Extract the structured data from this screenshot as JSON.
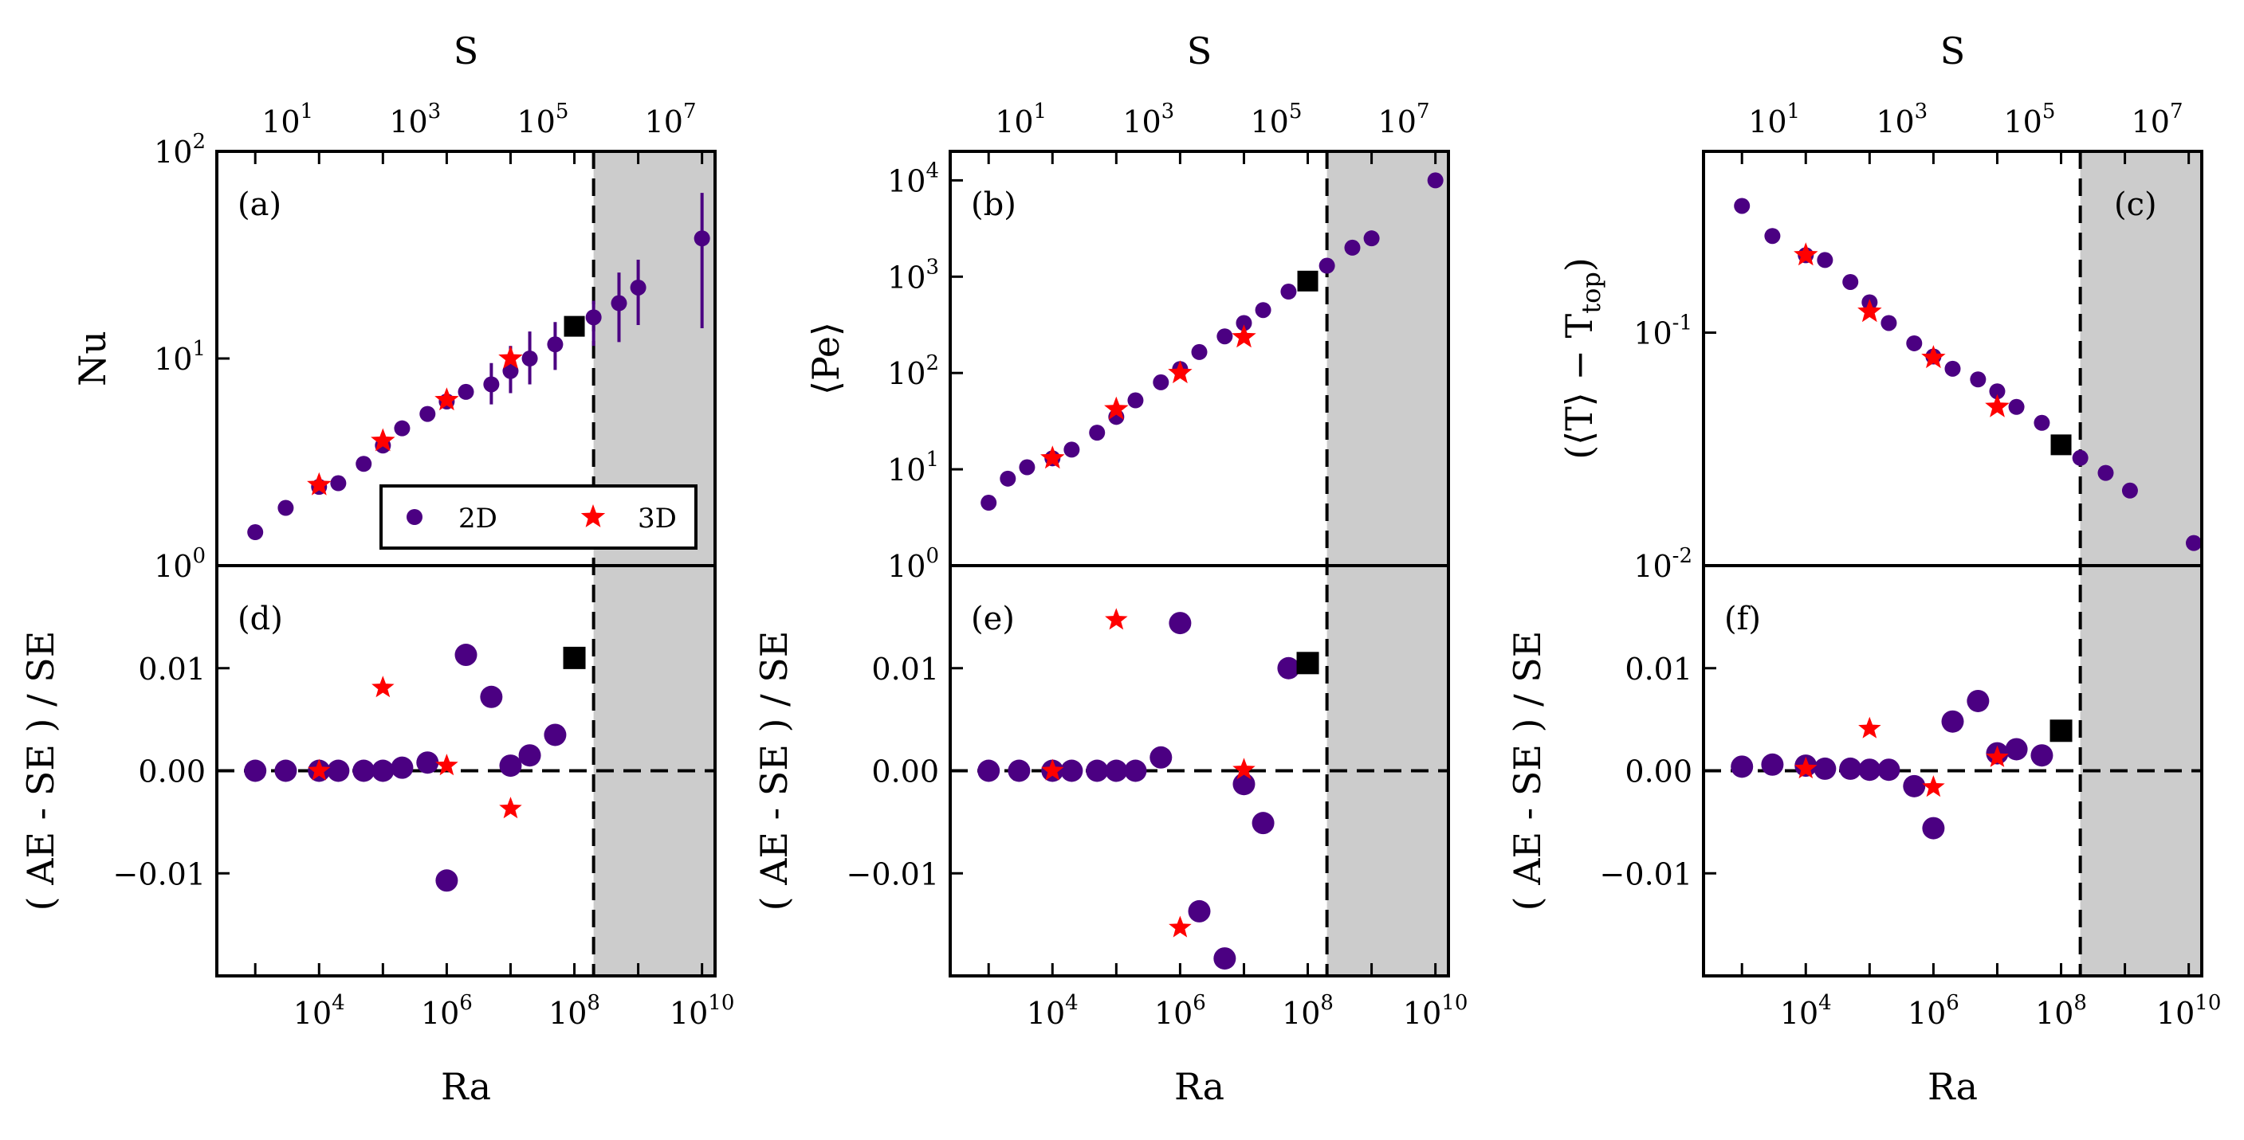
{
  "chart_data": {
    "type": "scatter",
    "colors": {
      "series_2d": "#4b0082",
      "series_3d": "#ff0000",
      "highlight": "#000000",
      "shade": "#cccccc"
    },
    "legend": {
      "entries": [
        "2D",
        "3D"
      ],
      "placement": "lower-right of panel (a)"
    },
    "x_axis": {
      "label": "Ra",
      "scale": "log",
      "range": [
        250.0,
        16000000000.0
      ],
      "ticks": [
        {
          "base": "10",
          "exp": "4"
        },
        {
          "base": "10",
          "exp": "6"
        },
        {
          "base": "10",
          "exp": "8"
        },
        {
          "base": "10",
          "exp": "10"
        }
      ]
    },
    "top_axis": {
      "label": "S",
      "ticks": [
        {
          "base": "10",
          "exp": "1"
        },
        {
          "base": "10",
          "exp": "3"
        },
        {
          "base": "10",
          "exp": "5"
        },
        {
          "base": "10",
          "exp": "7"
        }
      ]
    },
    "threshold_ra": 200000000.0,
    "bottom_ylabel": "( AE - SE ) / SE",
    "bottom_yticks": [
      "0.01",
      "0.00",
      "−0.01"
    ],
    "panels": [
      {
        "id": "a",
        "label": "(a)",
        "ylabel": "Nu",
        "ylim": [
          1,
          100
        ],
        "yticks": [
          {
            "base": "10",
            "exp": "0"
          },
          {
            "base": "10",
            "exp": "1"
          },
          {
            "base": "10",
            "exp": "2"
          }
        ],
        "series_2d": [
          {
            "x": 1000.0,
            "y": 1.45
          },
          {
            "x": 3000.0,
            "y": 1.9
          },
          {
            "x": 10000.0,
            "y": 2.4
          },
          {
            "x": 20000.0,
            "y": 2.5
          },
          {
            "x": 50000.0,
            "y": 3.1
          },
          {
            "x": 100000.0,
            "y": 3.8
          },
          {
            "x": 200000.0,
            "y": 4.6
          },
          {
            "x": 500000.0,
            "y": 5.4
          },
          {
            "x": 1000000.0,
            "y": 6.2
          },
          {
            "x": 2000000.0,
            "y": 6.9
          },
          {
            "x": 5000000.0,
            "y": 7.5,
            "err": [
              6.0,
              9.5
            ]
          },
          {
            "x": 10000000.0,
            "y": 8.7,
            "err": [
              6.8,
              11.5
            ]
          },
          {
            "x": 20000000.0,
            "y": 10.0,
            "err": [
              7.5,
              13.5
            ]
          },
          {
            "x": 50000000.0,
            "y": 11.7,
            "err": [
              8.8,
              15.0
            ]
          },
          {
            "x": 200000000.0,
            "y": 15.8,
            "err": [
              11.5,
              19.0
            ]
          },
          {
            "x": 500000000.0,
            "y": 18.5,
            "err": [
              12.0,
              26.0
            ]
          },
          {
            "x": 1000000000.0,
            "y": 22.0,
            "err": [
              14.5,
              30.0
            ]
          },
          {
            "x": 10000000000.0,
            "y": 38.0,
            "err": [
              14.0,
              63.0
            ]
          }
        ],
        "series_3d": [
          {
            "x": 10000.0,
            "y": 2.45
          },
          {
            "x": 100000.0,
            "y": 4.0
          },
          {
            "x": 1000000.0,
            "y": 6.3
          },
          {
            "x": 10000000.0,
            "y": 10.0
          }
        ],
        "highlight": {
          "x": 100000000.0,
          "y": 14.3
        },
        "diff_2d": [
          {
            "x": 1000.0,
            "y": 0.0
          },
          {
            "x": 3000.0,
            "y": 0.0
          },
          {
            "x": 10000.0,
            "y": 0.0
          },
          {
            "x": 20000.0,
            "y": 0.0
          },
          {
            "x": 50000.0,
            "y": 0.0
          },
          {
            "x": 100000.0,
            "y": 0.0
          },
          {
            "x": 200000.0,
            "y": 0.0003
          },
          {
            "x": 500000.0,
            "y": 0.0008
          },
          {
            "x": 1000000.0,
            "y": -0.0107
          },
          {
            "x": 2000000.0,
            "y": 0.0113
          },
          {
            "x": 5000000.0,
            "y": 0.0072
          },
          {
            "x": 10000000.0,
            "y": 0.0005
          },
          {
            "x": 20000000.0,
            "y": 0.0015
          },
          {
            "x": 50000000.0,
            "y": 0.0035
          }
        ],
        "diff_3d": [
          {
            "x": 10000.0,
            "y": 0.0
          },
          {
            "x": 100000.0,
            "y": 0.0081
          },
          {
            "x": 1000000.0,
            "y": 0.0005
          },
          {
            "x": 10000000.0,
            "y": -0.0037
          }
        ],
        "diff_highlight": {
          "x": 100000000.0,
          "y": 0.011
        }
      },
      {
        "id": "b",
        "label": "(b)",
        "ylabel": "⟨Pe⟩",
        "ylim": [
          1,
          20000
        ],
        "yticks": [
          {
            "base": "10",
            "exp": "0"
          },
          {
            "base": "10",
            "exp": "1"
          },
          {
            "base": "10",
            "exp": "2"
          },
          {
            "base": "10",
            "exp": "3"
          },
          {
            "base": "10",
            "exp": "4"
          }
        ],
        "series_2d": [
          {
            "x": 1000.0,
            "y": 4.5
          },
          {
            "x": 2000.0,
            "y": 8.0
          },
          {
            "x": 4000.0,
            "y": 10.5
          },
          {
            "x": 10000.0,
            "y": 13.0
          },
          {
            "x": 20000.0,
            "y": 16.0
          },
          {
            "x": 50000.0,
            "y": 24.0
          },
          {
            "x": 100000.0,
            "y": 35.0
          },
          {
            "x": 200000.0,
            "y": 52.0
          },
          {
            "x": 500000.0,
            "y": 80.0
          },
          {
            "x": 1000000.0,
            "y": 110.0
          },
          {
            "x": 2000000.0,
            "y": 165.0
          },
          {
            "x": 5000000.0,
            "y": 240.0
          },
          {
            "x": 10000000.0,
            "y": 330.0
          },
          {
            "x": 20000000.0,
            "y": 450.0
          },
          {
            "x": 50000000.0,
            "y": 700.0
          },
          {
            "x": 1000000000.0,
            "y": 2500.0
          },
          {
            "x": 200000000.0,
            "y": 1300.0
          },
          {
            "x": 500000000.0,
            "y": 2000.0
          },
          {
            "x": 10000000000.0,
            "y": 10000.0
          }
        ],
        "series_3d": [
          {
            "x": 10000.0,
            "y": 13.0
          },
          {
            "x": 100000.0,
            "y": 42.0
          },
          {
            "x": 1000000.0,
            "y": 100.0
          },
          {
            "x": 10000000.0,
            "y": 235.0
          }
        ],
        "highlight": {
          "x": 100000000.0,
          "y": 900.0
        },
        "diff_2d": [
          {
            "x": 1000.0,
            "y": 0.0
          },
          {
            "x": 3000.0,
            "y": 0.0
          },
          {
            "x": 10000.0,
            "y": 0.0
          },
          {
            "x": 20000.0,
            "y": 0.0
          },
          {
            "x": 50000.0,
            "y": 0.0
          },
          {
            "x": 100000.0,
            "y": 0.0
          },
          {
            "x": 200000.0,
            "y": 0.0
          },
          {
            "x": 500000.0,
            "y": 0.0013
          },
          {
            "x": 1000000.0,
            "y": 0.0144
          },
          {
            "x": 2000000.0,
            "y": -0.0137
          },
          {
            "x": 5000000.0,
            "y": -0.0183
          },
          {
            "x": 10000000.0,
            "y": -0.0013
          },
          {
            "x": 20000000.0,
            "y": -0.0051
          },
          {
            "x": 50000000.0,
            "y": 0.01
          }
        ],
        "diff_3d": [
          {
            "x": 10000.0,
            "y": 0.0
          },
          {
            "x": 100000.0,
            "y": 0.0147
          },
          {
            "x": 1000000.0,
            "y": -0.0153
          },
          {
            "x": 10000000.0,
            "y": 0.0001
          }
        ],
        "diff_highlight": {
          "x": 100000000.0,
          "y": 0.0105
        }
      },
      {
        "id": "c",
        "label": "(c)",
        "ylabel": "(⟨T⟩ − T",
        "ylabel_sub": "top",
        "ylabel_end": ")",
        "ylim": [
          0.01,
          0.6
        ],
        "yticks": [
          {
            "base": "10",
            "exp": "-2"
          },
          {
            "base": "10",
            "exp": "-1"
          }
        ],
        "series_2d": [
          {
            "x": 1000.0,
            "y": 0.35
          },
          {
            "x": 3000.0,
            "y": 0.26
          },
          {
            "x": 10000.0,
            "y": 0.215
          },
          {
            "x": 20000.0,
            "y": 0.205
          },
          {
            "x": 50000.0,
            "y": 0.165
          },
          {
            "x": 100000.0,
            "y": 0.135
          },
          {
            "x": 200000.0,
            "y": 0.11
          },
          {
            "x": 500000.0,
            "y": 0.09
          },
          {
            "x": 1000000.0,
            "y": 0.079
          },
          {
            "x": 2000000.0,
            "y": 0.07
          },
          {
            "x": 5000000.0,
            "y": 0.063
          },
          {
            "x": 10000000.0,
            "y": 0.056
          },
          {
            "x": 20000000.0,
            "y": 0.048
          },
          {
            "x": 50000000.0,
            "y": 0.041
          },
          {
            "x": 200000000.0,
            "y": 0.029
          },
          {
            "x": 500000000.0,
            "y": 0.025
          },
          {
            "x": 1200000000.0,
            "y": 0.021
          },
          {
            "x": 12000000000.0,
            "y": 0.0125
          }
        ],
        "series_3d": [
          {
            "x": 10000.0,
            "y": 0.215
          },
          {
            "x": 100000.0,
            "y": 0.123
          },
          {
            "x": 1000000.0,
            "y": 0.078
          },
          {
            "x": 10000000.0,
            "y": 0.048
          }
        ],
        "highlight": {
          "x": 100000000.0,
          "y": 0.033
        },
        "diff_2d": [
          {
            "x": 1000.0,
            "y": 0.0004
          },
          {
            "x": 3000.0,
            "y": 0.0006
          },
          {
            "x": 10000.0,
            "y": 0.0005
          },
          {
            "x": 20000.0,
            "y": 0.0002
          },
          {
            "x": 50000.0,
            "y": 0.0002
          },
          {
            "x": 100000.0,
            "y": 0.0001
          },
          {
            "x": 200000.0,
            "y": 0.0001
          },
          {
            "x": 500000.0,
            "y": -0.0015
          },
          {
            "x": 1000000.0,
            "y": -0.0056
          },
          {
            "x": 2000000.0,
            "y": 0.0048
          },
          {
            "x": 5000000.0,
            "y": 0.0068
          },
          {
            "x": 10000000.0,
            "y": 0.0017
          },
          {
            "x": 20000000.0,
            "y": 0.0021
          },
          {
            "x": 50000000.0,
            "y": 0.0015
          }
        ],
        "diff_3d": [
          {
            "x": 10000.0,
            "y": 0.0002
          },
          {
            "x": 100000.0,
            "y": 0.0041
          },
          {
            "x": 1000000.0,
            "y": -0.0016
          },
          {
            "x": 10000000.0,
            "y": 0.0013
          }
        ],
        "diff_highlight": {
          "x": 100000000.0,
          "y": 0.0039
        }
      }
    ]
  }
}
